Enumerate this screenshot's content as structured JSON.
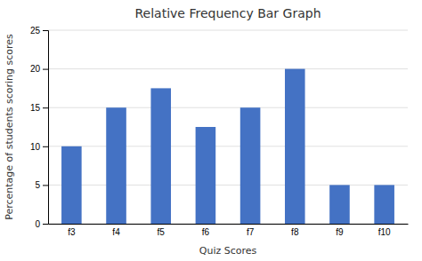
{
  "chart_data": {
    "type": "bar",
    "title": "Relative Frequency Bar Graph",
    "xlabel": "Quiz Scores",
    "ylabel": "Percentage of students scoring scores",
    "categories": [
      "f3",
      "f4",
      "f5",
      "f6",
      "f7",
      "f8",
      "f9",
      "f10"
    ],
    "values": [
      10,
      15,
      17.5,
      12.5,
      15,
      20,
      5,
      5
    ],
    "color": "#4472C4",
    "ylim": [
      0,
      25
    ],
    "yticks": [
      0,
      5,
      10,
      15,
      20,
      25
    ],
    "grid": true
  }
}
